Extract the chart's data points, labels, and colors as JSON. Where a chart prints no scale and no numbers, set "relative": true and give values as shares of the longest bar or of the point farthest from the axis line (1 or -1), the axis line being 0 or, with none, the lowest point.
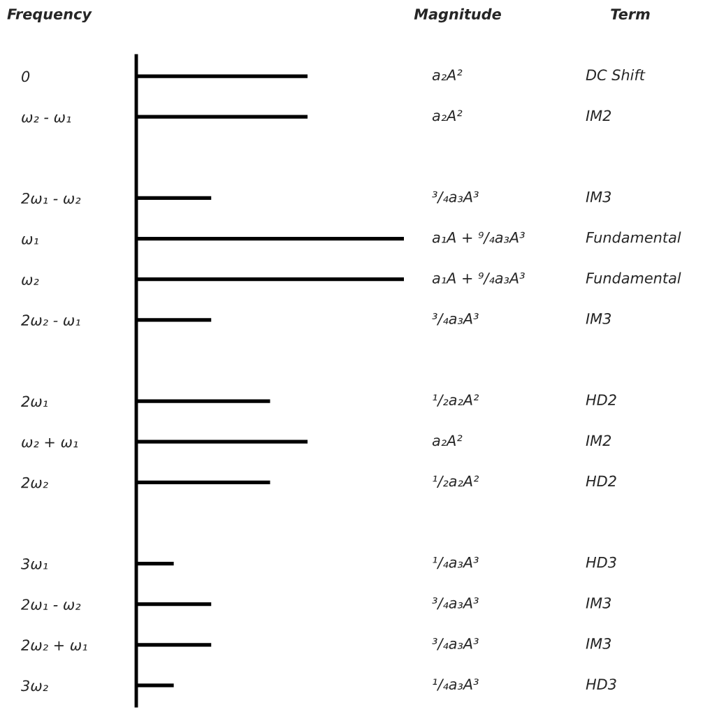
{
  "chart_data": {
    "type": "bar",
    "orientation": "horizontal",
    "relative": true,
    "ylabel": "Frequency",
    "xlabel": "Magnitude",
    "categories": [
      "0",
      "ω₂ - ω₁",
      null,
      "2ω₁ - ω₂",
      "ω₁",
      "ω₂",
      "2ω₂ - ω₁",
      null,
      "2ω₁",
      "ω₂ + ω₁",
      "2ω₂",
      null,
      "3ω₁",
      "2ω₁ - ω₂",
      "2ω₂ + ω₁",
      "3ω₂"
    ],
    "values": [
      0.64,
      0.64,
      null,
      0.28,
      1,
      1,
      0.28,
      null,
      0.5,
      0.64,
      0.5,
      null,
      0.14,
      0.28,
      0.28,
      0.14
    ],
    "color": "#000000",
    "annotations": [
      "Term",
      "a₂A²",
      "a₂A²",
      "³/₄a₃A³",
      "a₁A + ⁹/₄a₃A³",
      "a₁A + ⁹/₄a₃A³",
      "³/₄a₃A³",
      "¹/₂a₂A²",
      "a₂A²",
      "¹/₂a₂A²",
      "¹/₄a₃A³",
      "³/₄a₃A³",
      "³/₄a₃A³",
      "¹/₄a₃A³",
      "DC Shift",
      "IM2",
      "IM3",
      "Fundamental",
      "Fundamental",
      "IM3",
      "HD2",
      "IM2",
      "HD2",
      "HD3",
      "IM3",
      "IM3",
      "HD3"
    ],
    "grid": false,
    "legend": false
  }
}
